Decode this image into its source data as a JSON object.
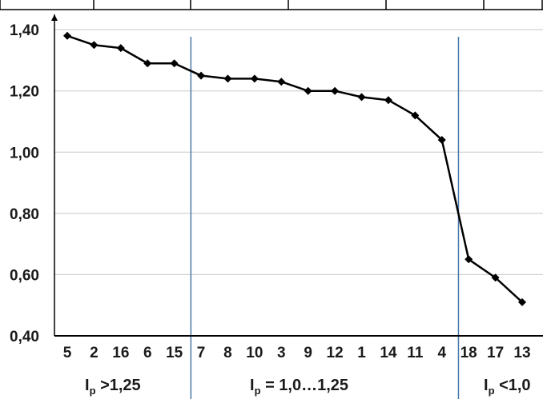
{
  "chart_data": {
    "type": "line",
    "categories": [
      "5",
      "2",
      "16",
      "6",
      "15",
      "7",
      "8",
      "10",
      "3",
      "9",
      "12",
      "1",
      "14",
      "11",
      "4",
      "18",
      "17",
      "13"
    ],
    "series": [
      {
        "values": [
          1.38,
          1.35,
          1.34,
          1.29,
          1.29,
          1.25,
          1.24,
          1.24,
          1.23,
          1.2,
          1.2,
          1.18,
          1.17,
          1.12,
          1.04,
          0.65,
          0.59,
          0.51
        ]
      }
    ],
    "y_ticks": [
      "1,40",
      "1,20",
      "1,00",
      "0,80",
      "0,60",
      "0,40"
    ],
    "ylim": [
      0.4,
      1.45
    ],
    "grid": true,
    "line_color": "#000000",
    "divider_color": "#4a78a8",
    "dividers_after_index": [
      4,
      14
    ],
    "regions": [
      {
        "main": "I",
        "sub": "p",
        "rest": " >1,25"
      },
      {
        "main": "I",
        "sub": "p",
        "rest": " = 1,0…1,25"
      },
      {
        "main": "I",
        "sub": "p",
        "rest": " <1,0"
      }
    ]
  }
}
